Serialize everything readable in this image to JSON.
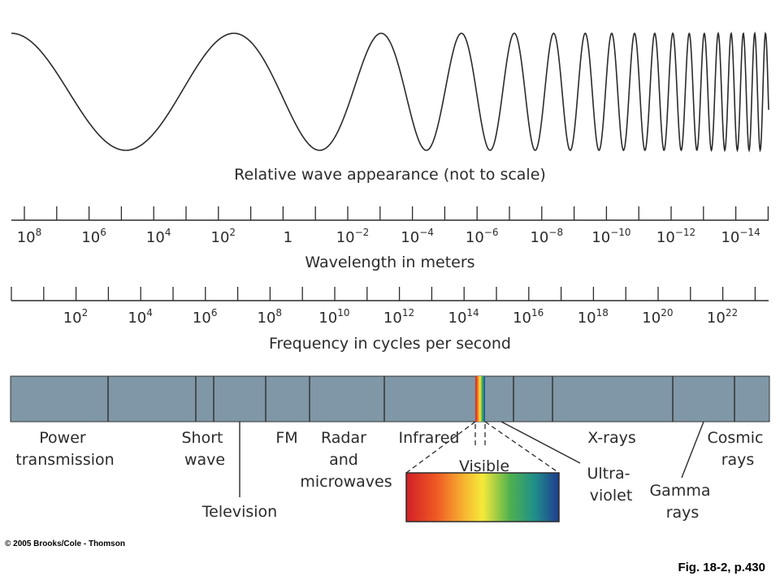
{
  "wave": {
    "caption": "Relative wave appearance (not to scale)"
  },
  "wavelength_axis": {
    "title": "Wavelength in meters",
    "ticks": [
      {
        "base": "10",
        "exp": "8"
      },
      {
        "base": "10",
        "exp": "6"
      },
      {
        "base": "10",
        "exp": "4"
      },
      {
        "base": "10",
        "exp": "2"
      },
      {
        "base": "1",
        "exp": ""
      },
      {
        "base": "10",
        "exp": "−2"
      },
      {
        "base": "10",
        "exp": "−4"
      },
      {
        "base": "10",
        "exp": "−6"
      },
      {
        "base": "10",
        "exp": "−8"
      },
      {
        "base": "10",
        "exp": "−10"
      },
      {
        "base": "10",
        "exp": "−12"
      },
      {
        "base": "10",
        "exp": "−14"
      }
    ]
  },
  "frequency_axis": {
    "title": "Frequency in cycles per second",
    "ticks": [
      {
        "base": "10",
        "exp": "2"
      },
      {
        "base": "10",
        "exp": "4"
      },
      {
        "base": "10",
        "exp": "6"
      },
      {
        "base": "10",
        "exp": "8"
      },
      {
        "base": "10",
        "exp": "10"
      },
      {
        "base": "10",
        "exp": "12"
      },
      {
        "base": "10",
        "exp": "14"
      },
      {
        "base": "10",
        "exp": "16"
      },
      {
        "base": "10",
        "exp": "18"
      },
      {
        "base": "10",
        "exp": "20"
      },
      {
        "base": "10",
        "exp": "22"
      }
    ]
  },
  "spectrum": {
    "bar_color": "#7f97a6",
    "regions": {
      "power": [
        "Power",
        "transmission"
      ],
      "shortwave": [
        "Short",
        "wave"
      ],
      "television": [
        "Television"
      ],
      "fm": [
        "FM"
      ],
      "radar": [
        "Radar",
        "and",
        "microwaves"
      ],
      "infrared": [
        "Infrared"
      ],
      "visible": [
        "Visible"
      ],
      "ultraviolet": [
        "Ultra-",
        "violet"
      ],
      "xrays": [
        "X-rays"
      ],
      "gamma": [
        "Gamma",
        "rays"
      ],
      "cosmic": [
        "Cosmic",
        "rays"
      ]
    }
  },
  "footer": {
    "copyright": "© 2005 Brooks/Cole - Thomson",
    "figure_ref": "Fig. 18-2, p.430"
  }
}
